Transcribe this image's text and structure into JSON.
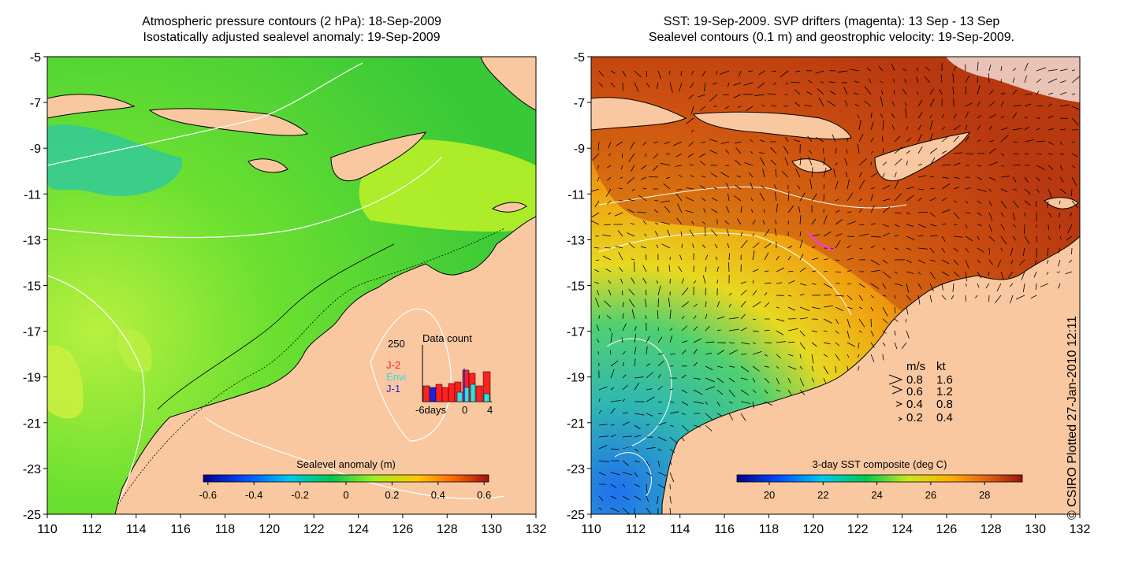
{
  "left_panel": {
    "title_line1": "Atmospheric pressure contours (2 hPa): 18-Sep-2009",
    "title_line2": "Isostatically adjusted sealevel anomaly: 19-Sep-2009",
    "y_ticks": [
      "-5",
      "-7",
      "-9",
      "-11",
      "-13",
      "-15",
      "-17",
      "-19",
      "-21",
      "-23",
      "-25"
    ],
    "x_ticks": [
      "110",
      "112",
      "114",
      "116",
      "118",
      "120",
      "122",
      "124",
      "126",
      "128",
      "130",
      "132"
    ],
    "colorbar_title": "Sealevel anomaly (m)",
    "colorbar_ticks": [
      "-0.6",
      "-0.4",
      "-0.2",
      "0",
      "0.2",
      "0.4",
      "0.6"
    ],
    "colors": {
      "land": "#f9c8a0",
      "sea_main": "#44d630",
      "sea_light": "#9cef28",
      "contour": "#ffffff",
      "coast": "#000000"
    }
  },
  "inset": {
    "title": "Data count",
    "max_label": "250",
    "x_ticks": [
      "-6days",
      "0",
      "4"
    ],
    "legend": [
      {
        "label": "J-2",
        "color": "#ff2020"
      },
      {
        "label": "Envi",
        "color": "#30e0e0"
      },
      {
        "label": "J-1",
        "color": "#2020e0"
      }
    ]
  },
  "right_panel": {
    "title_line1": "SST: 19-Sep-2009. SVP drifters (magenta): 13 Sep - 13 Sep",
    "title_line2": "Sealevel contours (0.1 m) and geostrophic velocity: 19-Sep-2009.",
    "y_ticks": [
      "-5",
      "-7",
      "-9",
      "-11",
      "-13",
      "-15",
      "-17",
      "-19",
      "-21",
      "-23",
      "-25"
    ],
    "x_ticks": [
      "110",
      "112",
      "114",
      "116",
      "118",
      "120",
      "122",
      "124",
      "126",
      "128",
      "130",
      "132"
    ],
    "colorbar_title": "3-day SST composite (deg C)",
    "colorbar_ticks": [
      "20",
      "22",
      "24",
      "26",
      "28"
    ],
    "velocity_legend": {
      "header_ms": "m/s",
      "header_kt": "kt",
      "rows": [
        {
          "ms": "0.8",
          "kt": "1.6"
        },
        {
          "ms": "0.6",
          "kt": "1.2"
        },
        {
          "ms": "0.4",
          "kt": "0.8"
        },
        {
          "ms": "0.2",
          "kt": "0.4"
        }
      ]
    },
    "colors": {
      "land": "#f9c8a0",
      "warm": "#c04010",
      "mid": "#f0a010",
      "cool": "#30c090"
    }
  },
  "credit": "© CSIRO Plotted 27-Jan-2010 12:11"
}
